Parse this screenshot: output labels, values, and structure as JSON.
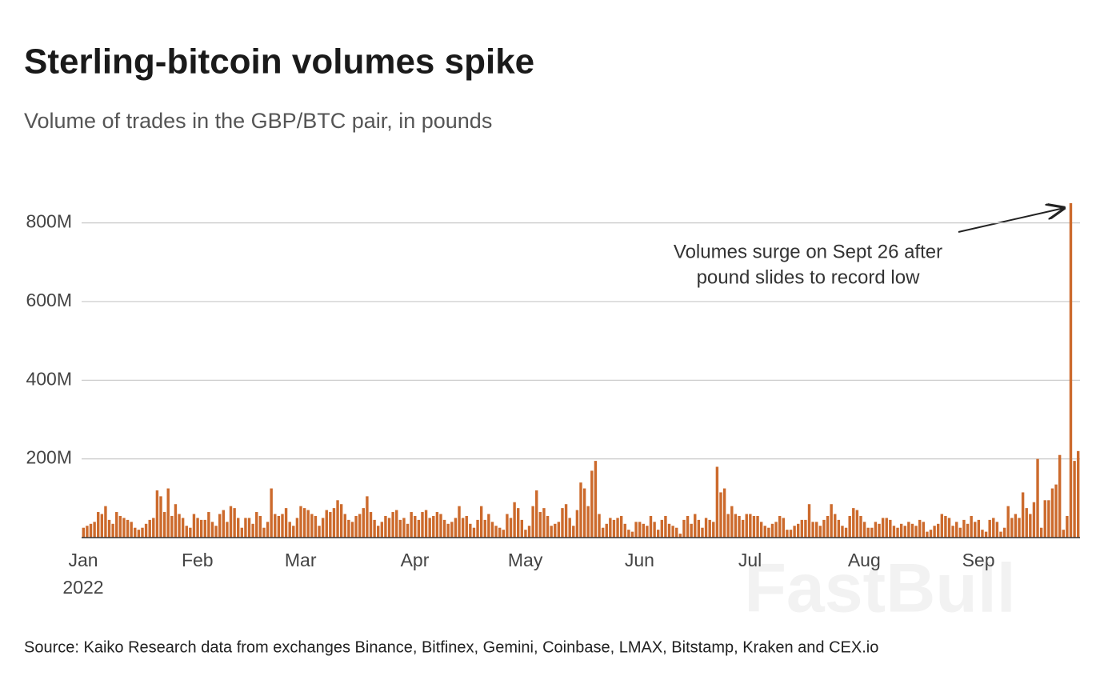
{
  "chart_data": {
    "type": "bar",
    "title": "Sterling-bitcoin volumes spike",
    "subtitle": "Volume of trades in the GBP/BTC pair, in pounds",
    "source": "Source: Kaiko Research data from exchanges Binance, Bitfinex, Gemini, Coinbase, LMAX, Bitstamp, Kraken and CEX.io",
    "annotation": [
      "Volumes surge on Sept 26 after",
      "pound slides to record low"
    ],
    "watermark": "FastBull",
    "x_year_label": "2022",
    "color": "#cc6a2c",
    "grid": true,
    "ylim": [
      0,
      850
    ],
    "yticks": [
      {
        "value": 200,
        "label": "200M"
      },
      {
        "value": 400,
        "label": "400M"
      },
      {
        "value": 600,
        "label": "600M"
      },
      {
        "value": 800,
        "label": "800M"
      }
    ],
    "categories": [
      "Jan",
      null,
      null,
      null,
      null,
      null,
      null,
      null,
      null,
      null,
      null,
      null,
      null,
      null,
      null,
      null,
      null,
      null,
      null,
      null,
      null,
      null,
      null,
      null,
      null,
      null,
      null,
      null,
      null,
      null,
      null,
      "Feb",
      null,
      null,
      null,
      null,
      null,
      null,
      null,
      null,
      null,
      null,
      null,
      null,
      null,
      null,
      null,
      null,
      null,
      null,
      null,
      null,
      null,
      null,
      null,
      null,
      null,
      null,
      null,
      "Mar",
      null,
      null,
      null,
      null,
      null,
      null,
      null,
      null,
      null,
      null,
      null,
      null,
      null,
      null,
      null,
      null,
      null,
      null,
      null,
      null,
      null,
      null,
      null,
      null,
      null,
      null,
      null,
      null,
      null,
      null,
      "Apr",
      null,
      null,
      null,
      null,
      null,
      null,
      null,
      null,
      null,
      null,
      null,
      null,
      null,
      null,
      null,
      null,
      null,
      null,
      null,
      null,
      null,
      null,
      null,
      null,
      null,
      null,
      null,
      null,
      null,
      "May",
      null,
      null,
      null,
      null,
      null,
      null,
      null,
      null,
      null,
      null,
      null,
      null,
      null,
      null,
      null,
      null,
      null,
      null,
      null,
      null,
      null,
      null,
      null,
      null,
      null,
      null,
      null,
      null,
      null,
      null,
      "Jun",
      null,
      null,
      null,
      null,
      null,
      null,
      null,
      null,
      null,
      null,
      null,
      null,
      null,
      null,
      null,
      null,
      null,
      null,
      null,
      null,
      null,
      null,
      null,
      null,
      null,
      null,
      null,
      null,
      null,
      "Jul",
      null,
      null,
      null,
      null,
      null,
      null,
      null,
      null,
      null,
      null,
      null,
      null,
      null,
      null,
      null,
      null,
      null,
      null,
      null,
      null,
      null,
      null,
      null,
      null,
      null,
      null,
      null,
      null,
      null,
      null,
      "Aug",
      null,
      null,
      null,
      null,
      null,
      null,
      null,
      null,
      null,
      null,
      null,
      null,
      null,
      null,
      null,
      null,
      null,
      null,
      null,
      null,
      null,
      null,
      null,
      null,
      null,
      null,
      null,
      null,
      null,
      null,
      "Sep",
      null,
      null,
      null,
      null,
      null,
      null,
      null,
      null,
      null,
      null,
      null,
      null,
      null,
      null,
      null,
      null,
      null,
      null,
      null,
      null,
      null,
      null,
      null,
      null,
      null,
      null,
      null
    ],
    "values": [
      25,
      30,
      35,
      40,
      65,
      60,
      80,
      45,
      35,
      65,
      55,
      50,
      45,
      40,
      25,
      20,
      25,
      35,
      45,
      50,
      120,
      105,
      65,
      125,
      55,
      85,
      60,
      50,
      30,
      25,
      60,
      50,
      45,
      45,
      65,
      40,
      30,
      60,
      70,
      40,
      80,
      75,
      50,
      25,
      50,
      50,
      35,
      65,
      55,
      25,
      40,
      125,
      60,
      55,
      60,
      75,
      40,
      30,
      50,
      80,
      75,
      70,
      60,
      55,
      30,
      50,
      70,
      65,
      75,
      95,
      85,
      60,
      45,
      40,
      55,
      60,
      75,
      105,
      65,
      45,
      30,
      40,
      55,
      50,
      65,
      70,
      45,
      50,
      35,
      65,
      55,
      45,
      65,
      70,
      50,
      55,
      65,
      60,
      45,
      35,
      40,
      50,
      80,
      50,
      55,
      35,
      25,
      45,
      80,
      45,
      60,
      40,
      30,
      25,
      20,
      60,
      50,
      90,
      75,
      45,
      20,
      30,
      80,
      120,
      65,
      75,
      55,
      30,
      35,
      40,
      75,
      85,
      50,
      30,
      70,
      140,
      125,
      80,
      170,
      195,
      60,
      25,
      35,
      50,
      45,
      50,
      55,
      35,
      20,
      15,
      40,
      40,
      35,
      30,
      55,
      40,
      20,
      45,
      55,
      35,
      30,
      25,
      10,
      45,
      55,
      35,
      60,
      45,
      25,
      50,
      45,
      40,
      180,
      115,
      125,
      60,
      80,
      60,
      55,
      45,
      60,
      60,
      55,
      55,
      40,
      30,
      25,
      35,
      40,
      55,
      50,
      20,
      20,
      30,
      35,
      45,
      45,
      85,
      40,
      40,
      30,
      45,
      55,
      85,
      60,
      45,
      30,
      25,
      55,
      75,
      70,
      55,
      40,
      25,
      25,
      40,
      35,
      50,
      50,
      45,
      30,
      25,
      35,
      30,
      40,
      35,
      30,
      45,
      40,
      15,
      20,
      30,
      35,
      60,
      55,
      50,
      30,
      40,
      25,
      45,
      35,
      55,
      40,
      45,
      20,
      15,
      45,
      50,
      40,
      15,
      25,
      80,
      50,
      60,
      50,
      115,
      75,
      60,
      90,
      200,
      25,
      95,
      95,
      125,
      135,
      210,
      20,
      55,
      850,
      195,
      220
    ]
  }
}
